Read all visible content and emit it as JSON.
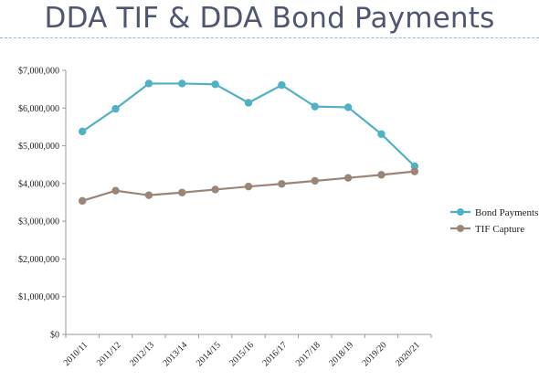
{
  "slide": {
    "title": "DDA TIF & DDA Bond Payments"
  },
  "colors": {
    "bond": "#4fb0c6",
    "tif": "#9b8577",
    "axis": "#999999",
    "title": "#4f5672"
  },
  "chart_data": {
    "type": "line",
    "categories": [
      "2010/11",
      "2011/12",
      "2012/13",
      "2013/14",
      "2014/15",
      "2015/16",
      "2016/17",
      "2017/18",
      "2018/19",
      "2019/20",
      "2020/21"
    ],
    "series": [
      {
        "name": "Bond Payments",
        "color": "#4fb0c6",
        "values": [
          5380000,
          5980000,
          6650000,
          6650000,
          6630000,
          6140000,
          6610000,
          6040000,
          6020000,
          5310000,
          4460000
        ]
      },
      {
        "name": "TIF Capture",
        "color": "#9b8577",
        "values": [
          3540000,
          3810000,
          3690000,
          3760000,
          3840000,
          3920000,
          3990000,
          4070000,
          4150000,
          4230000,
          4320000
        ]
      }
    ],
    "ylim": [
      0,
      7000000
    ],
    "yticks": [
      0,
      1000000,
      2000000,
      3000000,
      4000000,
      5000000,
      6000000,
      7000000
    ],
    "ytick_labels": [
      "$0",
      "$1,000,000",
      "$2,000,000",
      "$3,000,000",
      "$4,000,000",
      "$5,000,000",
      "$6,000,000",
      "$7,000,000"
    ],
    "legend_position": "right",
    "grid": false
  }
}
